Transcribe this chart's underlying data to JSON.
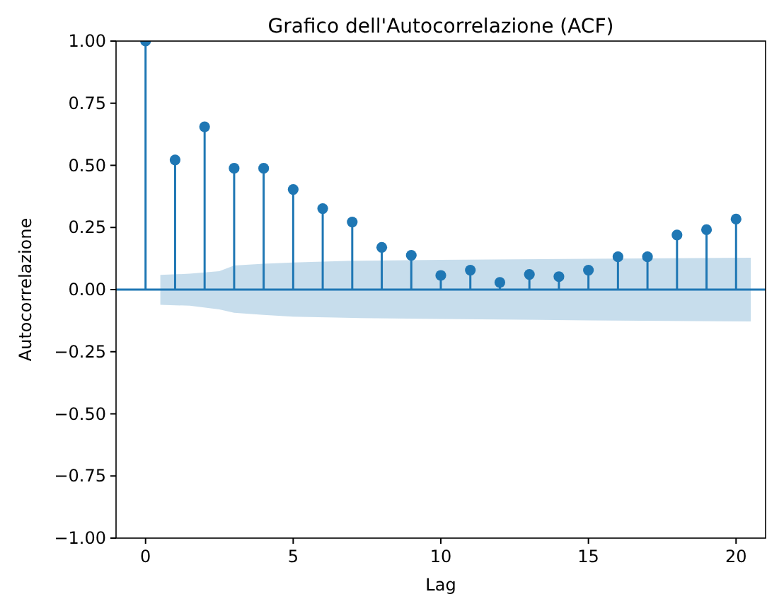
{
  "chart_data": {
    "type": "lollipop",
    "title": "Grafico dell'Autocorrelazione (ACF)",
    "xlabel": "Lag",
    "ylabel": "Autocorrelazione",
    "xlim": [
      -1,
      21
    ],
    "xticks": [
      0,
      5,
      10,
      15,
      20
    ],
    "ylim": [
      -1,
      1
    ],
    "yticks": [
      {
        "value": -1,
        "label": "−1.00"
      },
      {
        "value": -0.75,
        "label": "−0.75"
      },
      {
        "value": -0.5,
        "label": "−0.50"
      },
      {
        "value": -0.25,
        "label": "−0.25"
      },
      {
        "value": 0,
        "label": "0.00"
      },
      {
        "value": 0.25,
        "label": "0.25"
      },
      {
        "value": 0.5,
        "label": "0.50"
      },
      {
        "value": 0.75,
        "label": "0.75"
      },
      {
        "value": 1,
        "label": "1.00"
      }
    ],
    "grid": false,
    "series": [
      {
        "type": "line",
        "color": "#1f77b4",
        "marker": "none",
        "x": [
          -1,
          0.5,
          1.5,
          2.5,
          3,
          4,
          5,
          7,
          10,
          15,
          20.5,
          21
        ],
        "values": [
          0,
          0,
          0,
          0,
          0,
          0,
          0,
          0,
          0,
          0,
          0,
          0
        ],
        "lower": [
          null,
          -0.061,
          -0.065,
          -0.08,
          -0.093,
          -0.102,
          -0.109,
          -0.114,
          -0.118,
          -0.124,
          -0.128,
          null
        ],
        "upper": [
          null,
          0.059,
          0.064,
          0.074,
          0.097,
          0.104,
          0.109,
          0.116,
          0.12,
          0.124,
          0.128,
          null
        ]
      },
      {
        "color": "#1f77b4",
        "marker": "circle",
        "x": [
          0,
          1,
          2,
          3,
          4,
          5,
          6,
          7,
          8,
          9,
          10,
          11,
          12,
          13,
          14,
          15,
          16,
          17,
          18,
          19,
          20
        ],
        "values": [
          1,
          0.522,
          0.655,
          0.488,
          0.488,
          0.403,
          0.326,
          0.272,
          0.17,
          0.138,
          0.057,
          0.078,
          0.029,
          0.061,
          0.052,
          0.078,
          0.132,
          0.132,
          0.22,
          0.241,
          0.284
        ]
      }
    ]
  }
}
